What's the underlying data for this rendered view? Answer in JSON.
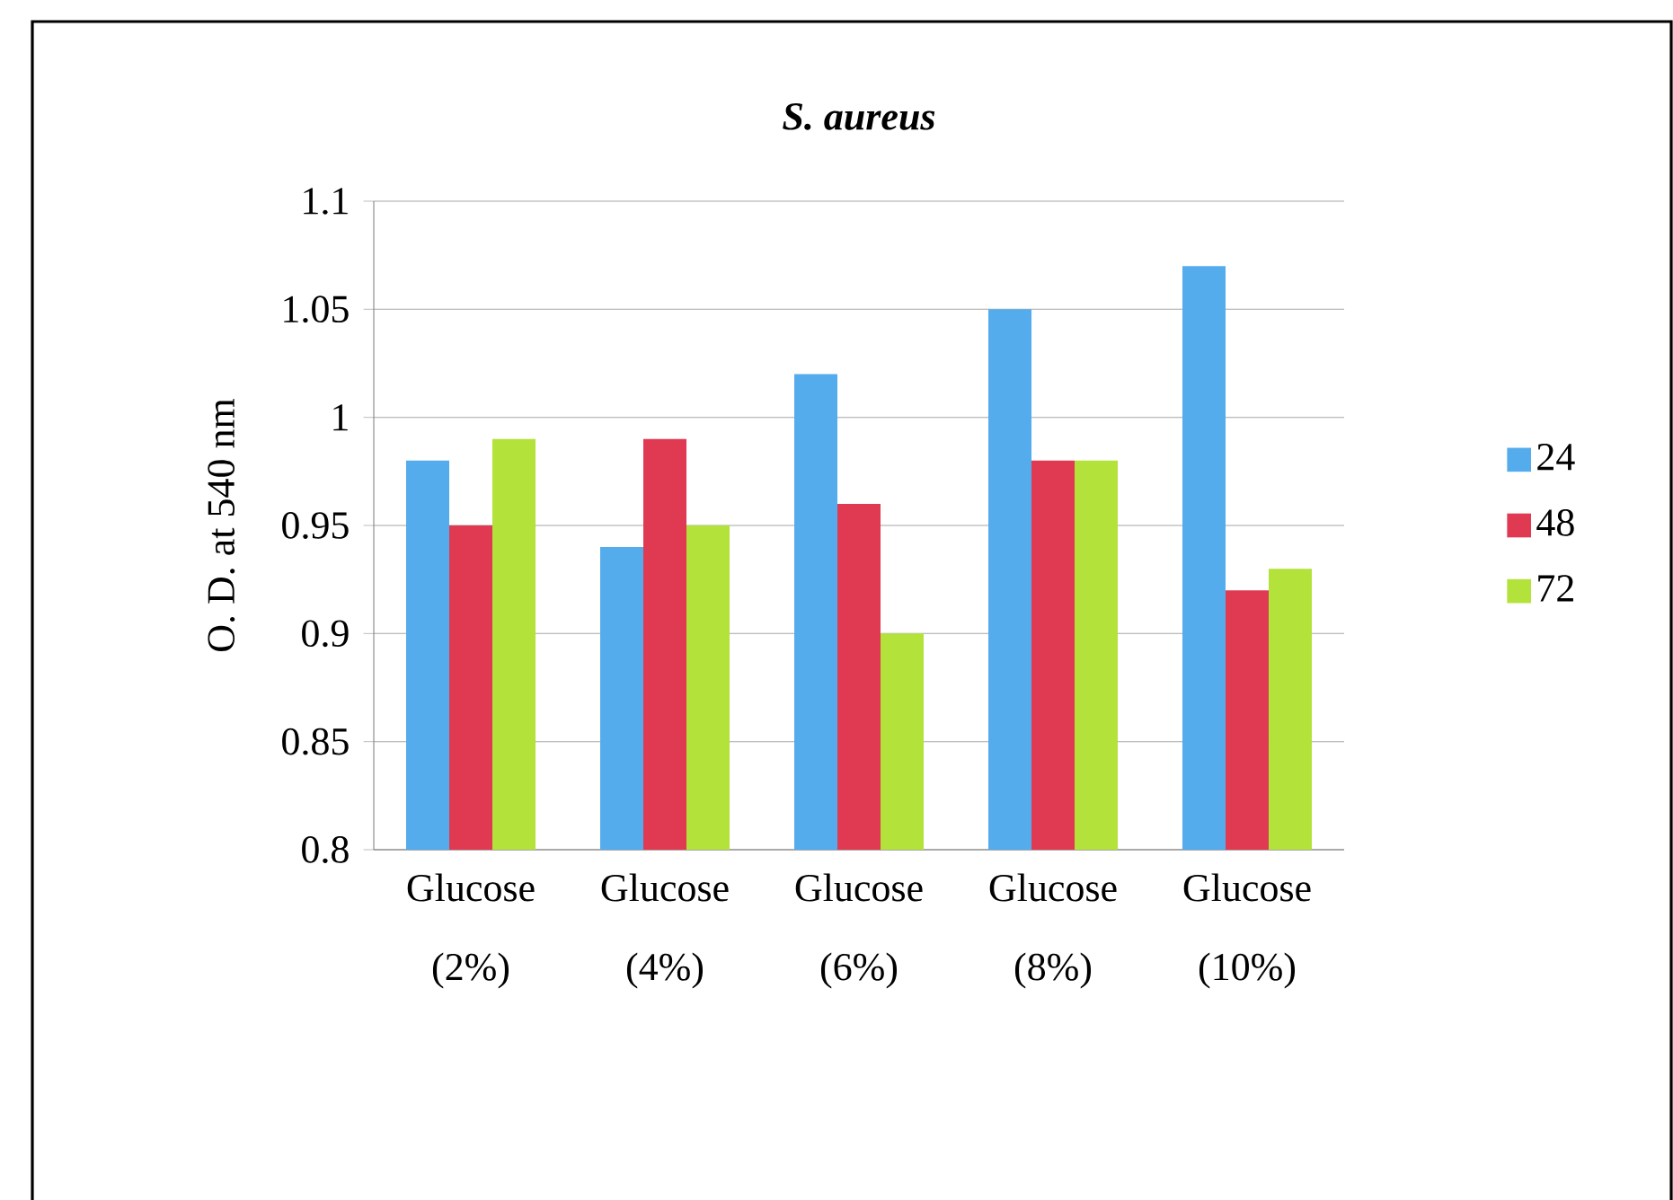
{
  "chart_data": {
    "type": "bar",
    "title": "*S. aureus*",
    "ylabel": "O. D. at 540 nm",
    "categories": [
      "Glucose (2%)",
      "Glucose (4%)",
      "Glucose (6%)",
      "Glucose (8%)",
      "Glucose (10%)"
    ],
    "series": [
      {
        "name": "24",
        "color": "#55acec",
        "values": [
          0.98,
          0.94,
          1.02,
          1.05,
          1.07
        ]
      },
      {
        "name": "48",
        "color": "#e03a52",
        "values": [
          0.95,
          0.99,
          0.96,
          0.98,
          0.92
        ]
      },
      {
        "name": "72",
        "color": "#b3e23a",
        "values": [
          0.99,
          0.95,
          0.9,
          0.98,
          0.93
        ]
      }
    ],
    "ylim": [
      0.8,
      1.1
    ],
    "yticks": [
      0.8,
      0.85,
      0.9,
      0.95,
      1,
      1.05,
      1.1
    ],
    "grid": "y",
    "legend": "right"
  }
}
